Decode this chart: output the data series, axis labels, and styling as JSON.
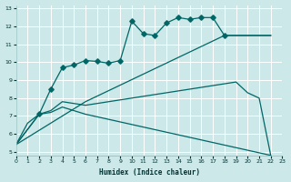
{
  "xlabel": "Humidex (Indice chaleur)",
  "xlim": [
    0,
    23
  ],
  "ylim": [
    4.8,
    13.2
  ],
  "xticks": [
    0,
    1,
    2,
    3,
    4,
    5,
    6,
    7,
    8,
    9,
    10,
    11,
    12,
    13,
    14,
    15,
    16,
    17,
    18,
    19,
    20,
    21,
    22,
    23
  ],
  "yticks": [
    5,
    6,
    7,
    8,
    9,
    10,
    11,
    12,
    13
  ],
  "background_color": "#cce8e8",
  "grid_color": "#aadddd",
  "line_color": "#006666",
  "line1_x": [
    0,
    1,
    2,
    3,
    4,
    5,
    6,
    7,
    8,
    9,
    10,
    11,
    12,
    13,
    14,
    15,
    16,
    17,
    18,
    22
  ],
  "line1_y": [
    5.4,
    6.6,
    7.1,
    8.5,
    9.7,
    9.85,
    10.1,
    10.05,
    9.95,
    10.1,
    12.3,
    11.6,
    11.5,
    12.2,
    12.5,
    12.4,
    12.5,
    12.5,
    11.5,
    11.5
  ],
  "line1_markers_x": [
    2,
    3,
    4,
    5,
    6,
    7,
    8,
    9,
    10,
    11,
    12,
    13,
    14,
    15,
    16,
    17,
    18
  ],
  "line1_markers_y": [
    7.1,
    8.5,
    9.7,
    9.85,
    10.1,
    10.05,
    9.95,
    10.1,
    12.3,
    11.6,
    11.5,
    12.2,
    12.5,
    12.4,
    12.5,
    12.5,
    11.5
  ],
  "line2_x": [
    0,
    2,
    3,
    4,
    5,
    6,
    22
  ],
  "line2_y": [
    5.4,
    7.1,
    7.2,
    7.5,
    7.3,
    7.1,
    4.8
  ],
  "line3_x": [
    0,
    2,
    3,
    4,
    5,
    6,
    19,
    20,
    21,
    22
  ],
  "line3_y": [
    5.4,
    7.1,
    7.3,
    7.8,
    7.7,
    7.6,
    8.9,
    8.3,
    8.0,
    4.8
  ],
  "line4_x": [
    0,
    6,
    18,
    22
  ],
  "line4_y": [
    5.4,
    7.8,
    11.5,
    11.5
  ]
}
